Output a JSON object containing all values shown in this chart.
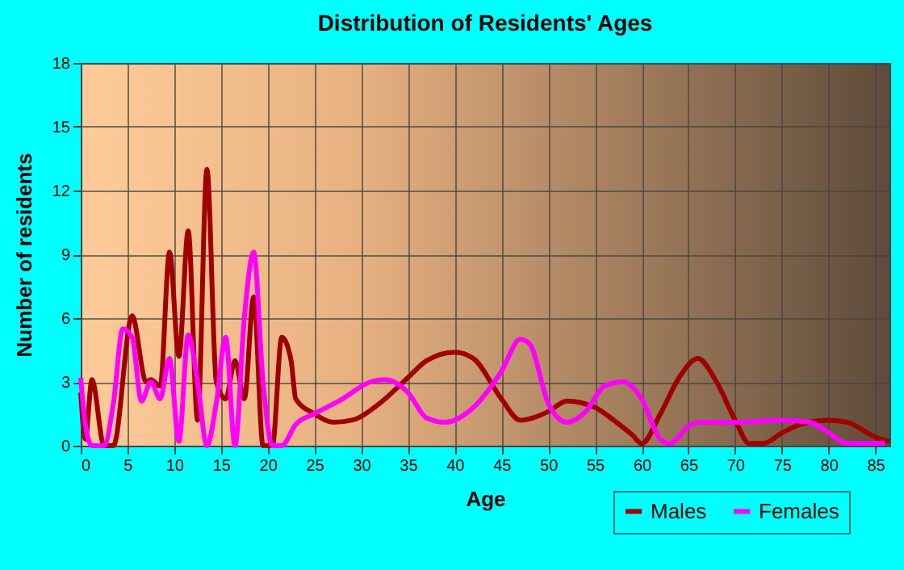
{
  "chart_data": {
    "type": "line",
    "title": "Distribution of Residents' Ages",
    "xlabel": "Age",
    "ylabel": "Number of residents",
    "xlim": [
      0,
      86.5
    ],
    "xticks": [
      0,
      5,
      10,
      15,
      20,
      25,
      30,
      35,
      40,
      45,
      50,
      55,
      60,
      65,
      70,
      75,
      80,
      85
    ],
    "ylim": [
      0,
      18
    ],
    "yticks": [
      0,
      3,
      6,
      9,
      12,
      15,
      18
    ],
    "grid": true,
    "legend": "bottom right",
    "marker": "none",
    "line_style": "solid",
    "series": [
      {
        "name": "Males",
        "color": "#a00000",
        "x": [
          0,
          0.5,
          1.2,
          2.5,
          3.5,
          5.5,
          7,
          7.5,
          8.5,
          9.5,
          10.5,
          11.5,
          12.5,
          13.5,
          14.5,
          15.5,
          16.5,
          17.5,
          18.5,
          19.5,
          20.5,
          21.5,
          22.5,
          23,
          25,
          27,
          29,
          32,
          35,
          37,
          40,
          42,
          45,
          47,
          50,
          52,
          55,
          57,
          59,
          60,
          62,
          64,
          66,
          68,
          70,
          71.5,
          73,
          75,
          77,
          80,
          82,
          85,
          86.5
        ],
        "values": [
          2.5,
          0.3,
          3.1,
          0,
          0,
          6.1,
          3,
          3.1,
          2.8,
          9.1,
          4.2,
          10.1,
          1.2,
          13,
          3,
          2.2,
          4,
          2.2,
          7,
          0,
          0,
          5.1,
          4,
          2.2,
          1.5,
          1.1,
          1.2,
          2,
          3.2,
          4,
          4.4,
          4.1,
          2.2,
          1.2,
          1.6,
          2.1,
          1.8,
          1.2,
          0.5,
          0.1,
          1.5,
          3.2,
          4.1,
          3,
          1.2,
          0.1,
          0.1,
          0.6,
          1,
          1.2,
          1.1,
          0.4,
          0.2
        ]
      },
      {
        "name": "Females",
        "color": "#ff00ff",
        "x": [
          0,
          0.5,
          1.2,
          2.5,
          3.5,
          4.5,
          5.5,
          6.5,
          7.5,
          8.5,
          9.5,
          10.5,
          11.5,
          12.5,
          13.5,
          14.5,
          15.5,
          16.5,
          17.5,
          18.5,
          19.5,
          20.5,
          21.5,
          23,
          25,
          28,
          31,
          32.5,
          35,
          37,
          39,
          42,
          45,
          47,
          48,
          50,
          52,
          54,
          56,
          58,
          60,
          62,
          63,
          65,
          66,
          70,
          75,
          78,
          80,
          82,
          86
        ],
        "values": [
          3.2,
          1,
          0,
          0,
          2,
          5.5,
          5.1,
          2.1,
          3,
          2.2,
          4.1,
          0.2,
          5.2,
          3,
          0,
          2,
          5.1,
          0,
          6,
          9.1,
          3,
          0,
          0,
          1,
          1.5,
          2.2,
          3,
          3.1,
          2.5,
          1.3,
          1.1,
          1.8,
          3.5,
          5,
          4.8,
          2,
          1.1,
          1.6,
          2.8,
          3,
          2.2,
          0.3,
          0.1,
          0.9,
          1.1,
          1.1,
          1.2,
          1.1,
          0.6,
          0.1,
          0.1
        ]
      }
    ]
  }
}
